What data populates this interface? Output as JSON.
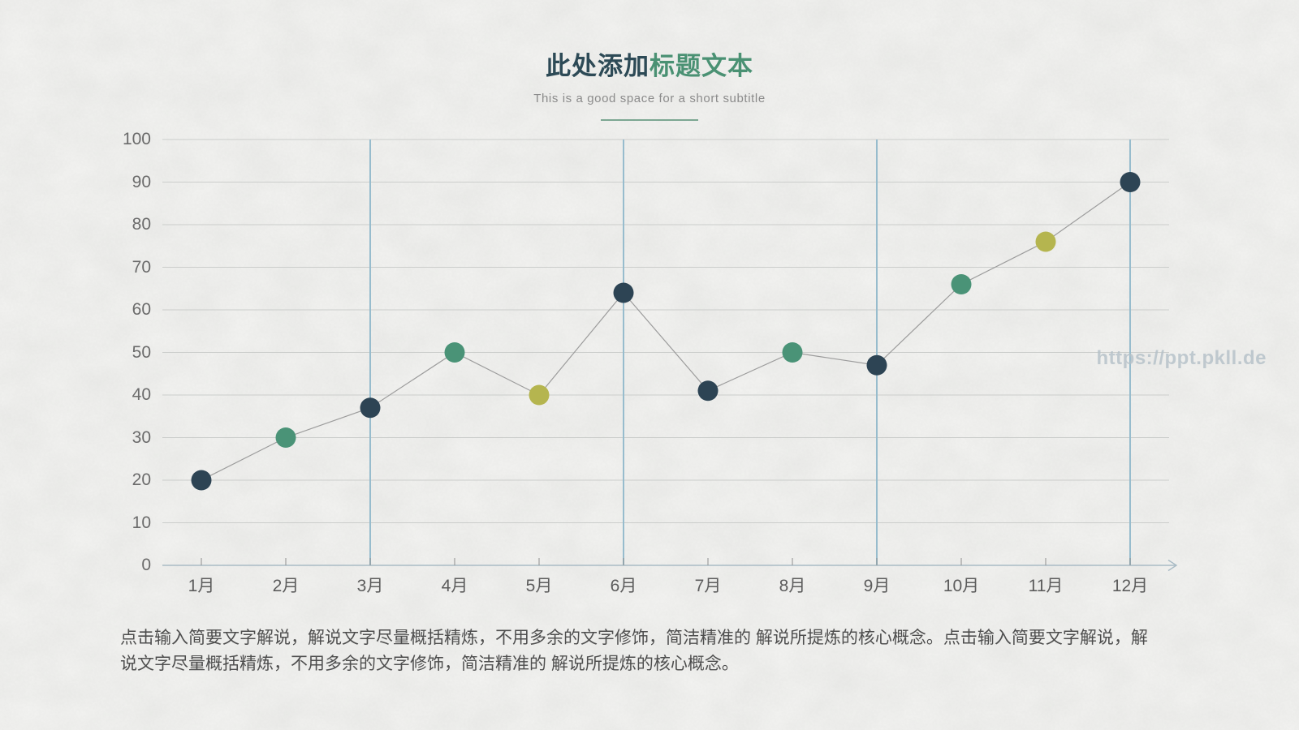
{
  "header": {
    "title_primary": "此处添加",
    "title_accent": "标题文本",
    "subtitle": "This is a good space for a short subtitle"
  },
  "watermark": "https://ppt.pkll.de",
  "description": "点击输入简要文字解说，解说文字尽量概括精炼，不用多余的文字修饰，简洁精准的 解说所提炼的核心概念。点击输入简要文字解说，解说文字尽量概括精炼，不用多余的文字修饰，简洁精准的 解说所提炼的核心概念。",
  "colors": {
    "title_primary": "#2d4a56",
    "title_accent": "#4a9173",
    "point_navy": "#2d4454",
    "point_green": "#4a9377",
    "point_olive": "#b5b54f",
    "series_line": "#9c9c9c",
    "grid_line": "#cbcdcb",
    "axis_line": "#a9bbc5",
    "vertical_accent_line": "#97bccd",
    "watermark_text": "#b4c0c8"
  },
  "chart_data": {
    "type": "line",
    "title": "",
    "xlabel": "",
    "ylabel": "",
    "categories": [
      "1月",
      "2月",
      "3月",
      "4月",
      "5月",
      "6月",
      "7月",
      "8月",
      "9月",
      "10月",
      "11月",
      "12月"
    ],
    "values": [
      20,
      30,
      37,
      50,
      40,
      64,
      41,
      50,
      47,
      66,
      76,
      90
    ],
    "point_colors": [
      "navy",
      "green",
      "navy",
      "green",
      "olive",
      "navy",
      "navy",
      "green",
      "navy",
      "green",
      "olive",
      "navy"
    ],
    "ylim": [
      0,
      100
    ],
    "yticks": [
      0,
      10,
      20,
      30,
      40,
      50,
      60,
      70,
      80,
      90,
      100
    ],
    "grid": "horizontal gridlines on; vertical accent gridlines at 3月, 6月, 9月, 12月",
    "vertical_accent_indices": [
      2,
      5,
      8,
      11
    ],
    "legend": "none",
    "marker": "filled circle"
  }
}
